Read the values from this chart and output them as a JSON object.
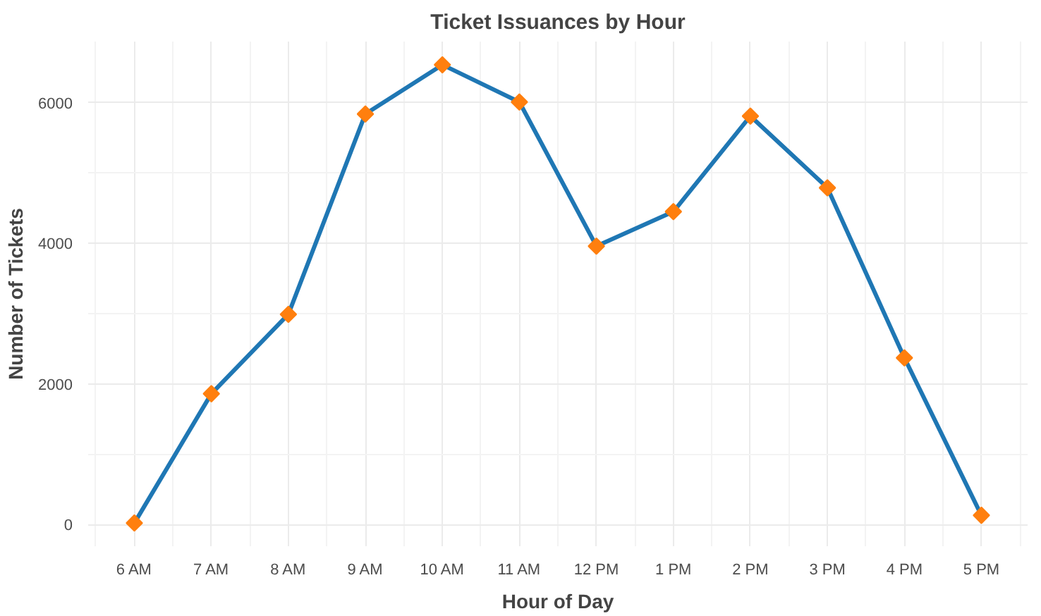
{
  "chart_data": {
    "type": "line",
    "title": "Ticket Issuances by Hour",
    "xlabel": "Hour of Day",
    "ylabel": "Number of Tickets",
    "categories": [
      "6 AM",
      "7 AM",
      "8 AM",
      "9 AM",
      "10 AM",
      "11 AM",
      "12 PM",
      "1 PM",
      "2 PM",
      "3 PM",
      "4 PM",
      "5 PM"
    ],
    "series": [
      {
        "color": "#1f77b4",
        "marker": "none",
        "values": [
          20,
          1860,
          2990,
          5840,
          6540,
          6010,
          3960,
          4450,
          5810,
          4790,
          2370,
          130
        ]
      },
      {
        "type": "scatter",
        "marker": "diamond",
        "color": "#ff7f0e",
        "values": [
          20,
          1860,
          2990,
          5840,
          6540,
          6010,
          3960,
          4450,
          5810,
          4790,
          2370,
          130
        ]
      }
    ],
    "ylim": [
      -310,
      6870
    ],
    "yticks": [
      0,
      {
        "value": 1000,
        "label": null
      },
      2000,
      {
        "value": 3000,
        "label": null
      },
      4000,
      {
        "value": 5000,
        "label": null
      },
      6000
    ],
    "grid": true,
    "line_style": "solid"
  }
}
